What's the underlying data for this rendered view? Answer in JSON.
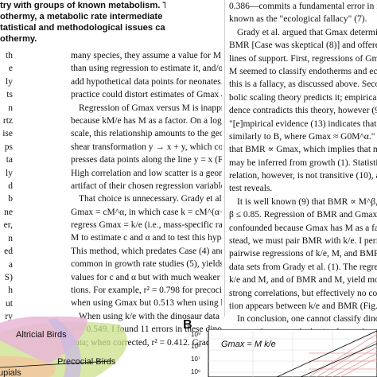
{
  "abstract_lines": [
    "try with groups of known metabolism. They",
    "othermy, a metabolic rate intermediate between",
    "tatistical and methodological issues call into",
    "othermy."
  ],
  "margin_stub": [
    "th",
    "e",
    "ly",
    "ts",
    "n",
    "rtz",
    "ise",
    "ps",
    "ta",
    "ly",
    "d",
    "b",
    "ne",
    "er,",
    "n",
    "ed",
    "a",
    "S)",
    "h",
    "ut",
    "ry"
  ],
  "column1": [
    {
      "t": "many species, they assume a value for M rather",
      "i": 0
    },
    {
      "t": "than using regression to estimate it, and/or they",
      "i": 0
    },
    {
      "t": "add hypothetical data points for neonates. Either",
      "i": 0
    },
    {
      "t": "practice could distort estimates of Gmax and k.",
      "i": 0
    },
    {
      "t": "Regression of Gmax versus M is inappropriate",
      "i": 1
    },
    {
      "t": "because kM/e has M as a factor. On a log-log",
      "i": 0
    },
    {
      "t": "scale, this relationship amounts to the geometric",
      "i": 0
    },
    {
      "t": "shear transformation y → x + y, which com-",
      "i": 0
    },
    {
      "t": "presses data points along the line y = x (Fig. 1).",
      "i": 0
    },
    {
      "t": "High correlation and low scatter is a geometric",
      "i": 0
    },
    {
      "t": "artifact of their chosen regression variable.",
      "i": 0
    },
    {
      "t": "That choice is unnecessary. Grady et al. propose",
      "i": 1
    },
    {
      "t": "Gmax = cM^α, in which case k = cM^(α−1). One should",
      "i": 0
    },
    {
      "t": "regress Gmax = k/e (i.e., mass-specific rate) versus",
      "i": 0
    },
    {
      "t": "M to estimate c and α and to test this hypothesis.",
      "i": 0
    },
    {
      "t": "This method, which predates Case (4) and is more",
      "i": 0
    },
    {
      "t": "common in growth rate studies (5), yields identical",
      "i": 0
    },
    {
      "t": "values for c and α but with much weaker correla-",
      "i": 0
    },
    {
      "t": "tions. For example, r² = 0.798 for precocial birds",
      "i": 0
    },
    {
      "t": "when using Gmax but 0.513 when using k/e.",
      "i": 0
    },
    {
      "t": "When using k/e with the dinosaur data in (1) yields",
      "i": 1
    },
    {
      "t": "r² = 0.549. I found 11 errors in these dinosaur",
      "i": 0
    },
    {
      "t": "data; when corrected, r² = 0.412. Grady et al. in",
      "i": 0
    }
  ],
  "column2": [
    {
      "t": "0.386—commits a fundamental error in inference",
      "i": 0
    },
    {
      "t": "known as the \"ecological fallacy\" (7).",
      "i": 0
    },
    {
      "t": "Grady et al. argued that Gmax determines",
      "i": 1
    },
    {
      "t": "BMR [Case was skeptical (8)] and offered three",
      "i": 0
    },
    {
      "t": "lines of support. First, regressions of Gmax versus",
      "i": 0
    },
    {
      "t": "M seemed to classify endotherms and ectotherms;",
      "i": 0
    },
    {
      "t": "this is a fallacy, as discussed above. Second, meta-",
      "i": 0
    },
    {
      "t": "bolic scaling theory predicts it; empirical evi-",
      "i": 0
    },
    {
      "t": "dence contradicts this theory, however (9). Third,",
      "i": 0
    },
    {
      "t": "\"[e]mpirical evidence (13) indicates that Gmax scales",
      "i": 0
    },
    {
      "t": "similarly to B, where Gmax ≈ G0M^α.\" This suggests",
      "i": 0
    },
    {
      "t": "that BMR ∝ Gmax, which implies that metabolic rate",
      "i": 0
    },
    {
      "t": "may be inferred from growth (1). Statistical cor-",
      "i": 0
    },
    {
      "t": "relation, however, is not transitive (10), as a simple",
      "i": 0
    },
    {
      "t": "test reveals.",
      "i": 0
    },
    {
      "t": "It is well known (9) that BMR ∝ M^β, 0.6 ≤",
      "i": 1
    },
    {
      "t": "β ≤ 0.85. Regression of BMR and Gmax is thus",
      "i": 0
    },
    {
      "t": "confounded because Gmax has M as a factor. In-",
      "i": 0
    },
    {
      "t": "stead, we must pair BMR with k/e. I performed",
      "i": 0
    },
    {
      "t": "pairwise regressions of k/e, M, and BMR, using",
      "i": 0
    },
    {
      "t": "data sets from Grady et al. (1). The regressions of",
      "i": 0
    },
    {
      "t": "k/e and M, and of BMR and M, yield moderately",
      "i": 0
    },
    {
      "t": "strong correlations, but effectively no correla-",
      "i": 0
    },
    {
      "t": "tion appears between k/e and BMR (Fig. 2).",
      "i": 0
    },
    {
      "t": "In conclusion, one cannot classify dinosaurs",
      "i": 1
    },
    {
      "t": "as mesotherms on the basis of growth rate al-",
      "i": 0
    },
    {
      "t": "lometry. The growth rates of the dinosaur taxa",
      "i": 0
    },
    {
      "t": "studied by Grady et al. (1) match those of birds",
      "i": 0
    }
  ],
  "figure_a": {
    "labels": [
      "Altricial Birds",
      "Precocial Birds",
      "upials"
    ]
  },
  "figure_b": {
    "panel_label": "B",
    "equation": "Gmax = M k/e",
    "tick_labels": [
      "10⁹",
      "10⁸",
      "10⁷",
      "10⁶"
    ]
  },
  "colors": {
    "altricial": "#e9b6d6",
    "precocial": "#c9e08a",
    "marsupial": "#f2c9a0",
    "purple_band": "#c7b9e6",
    "red_lines": "#e89b9b",
    "grid": "#d9d9d9"
  }
}
